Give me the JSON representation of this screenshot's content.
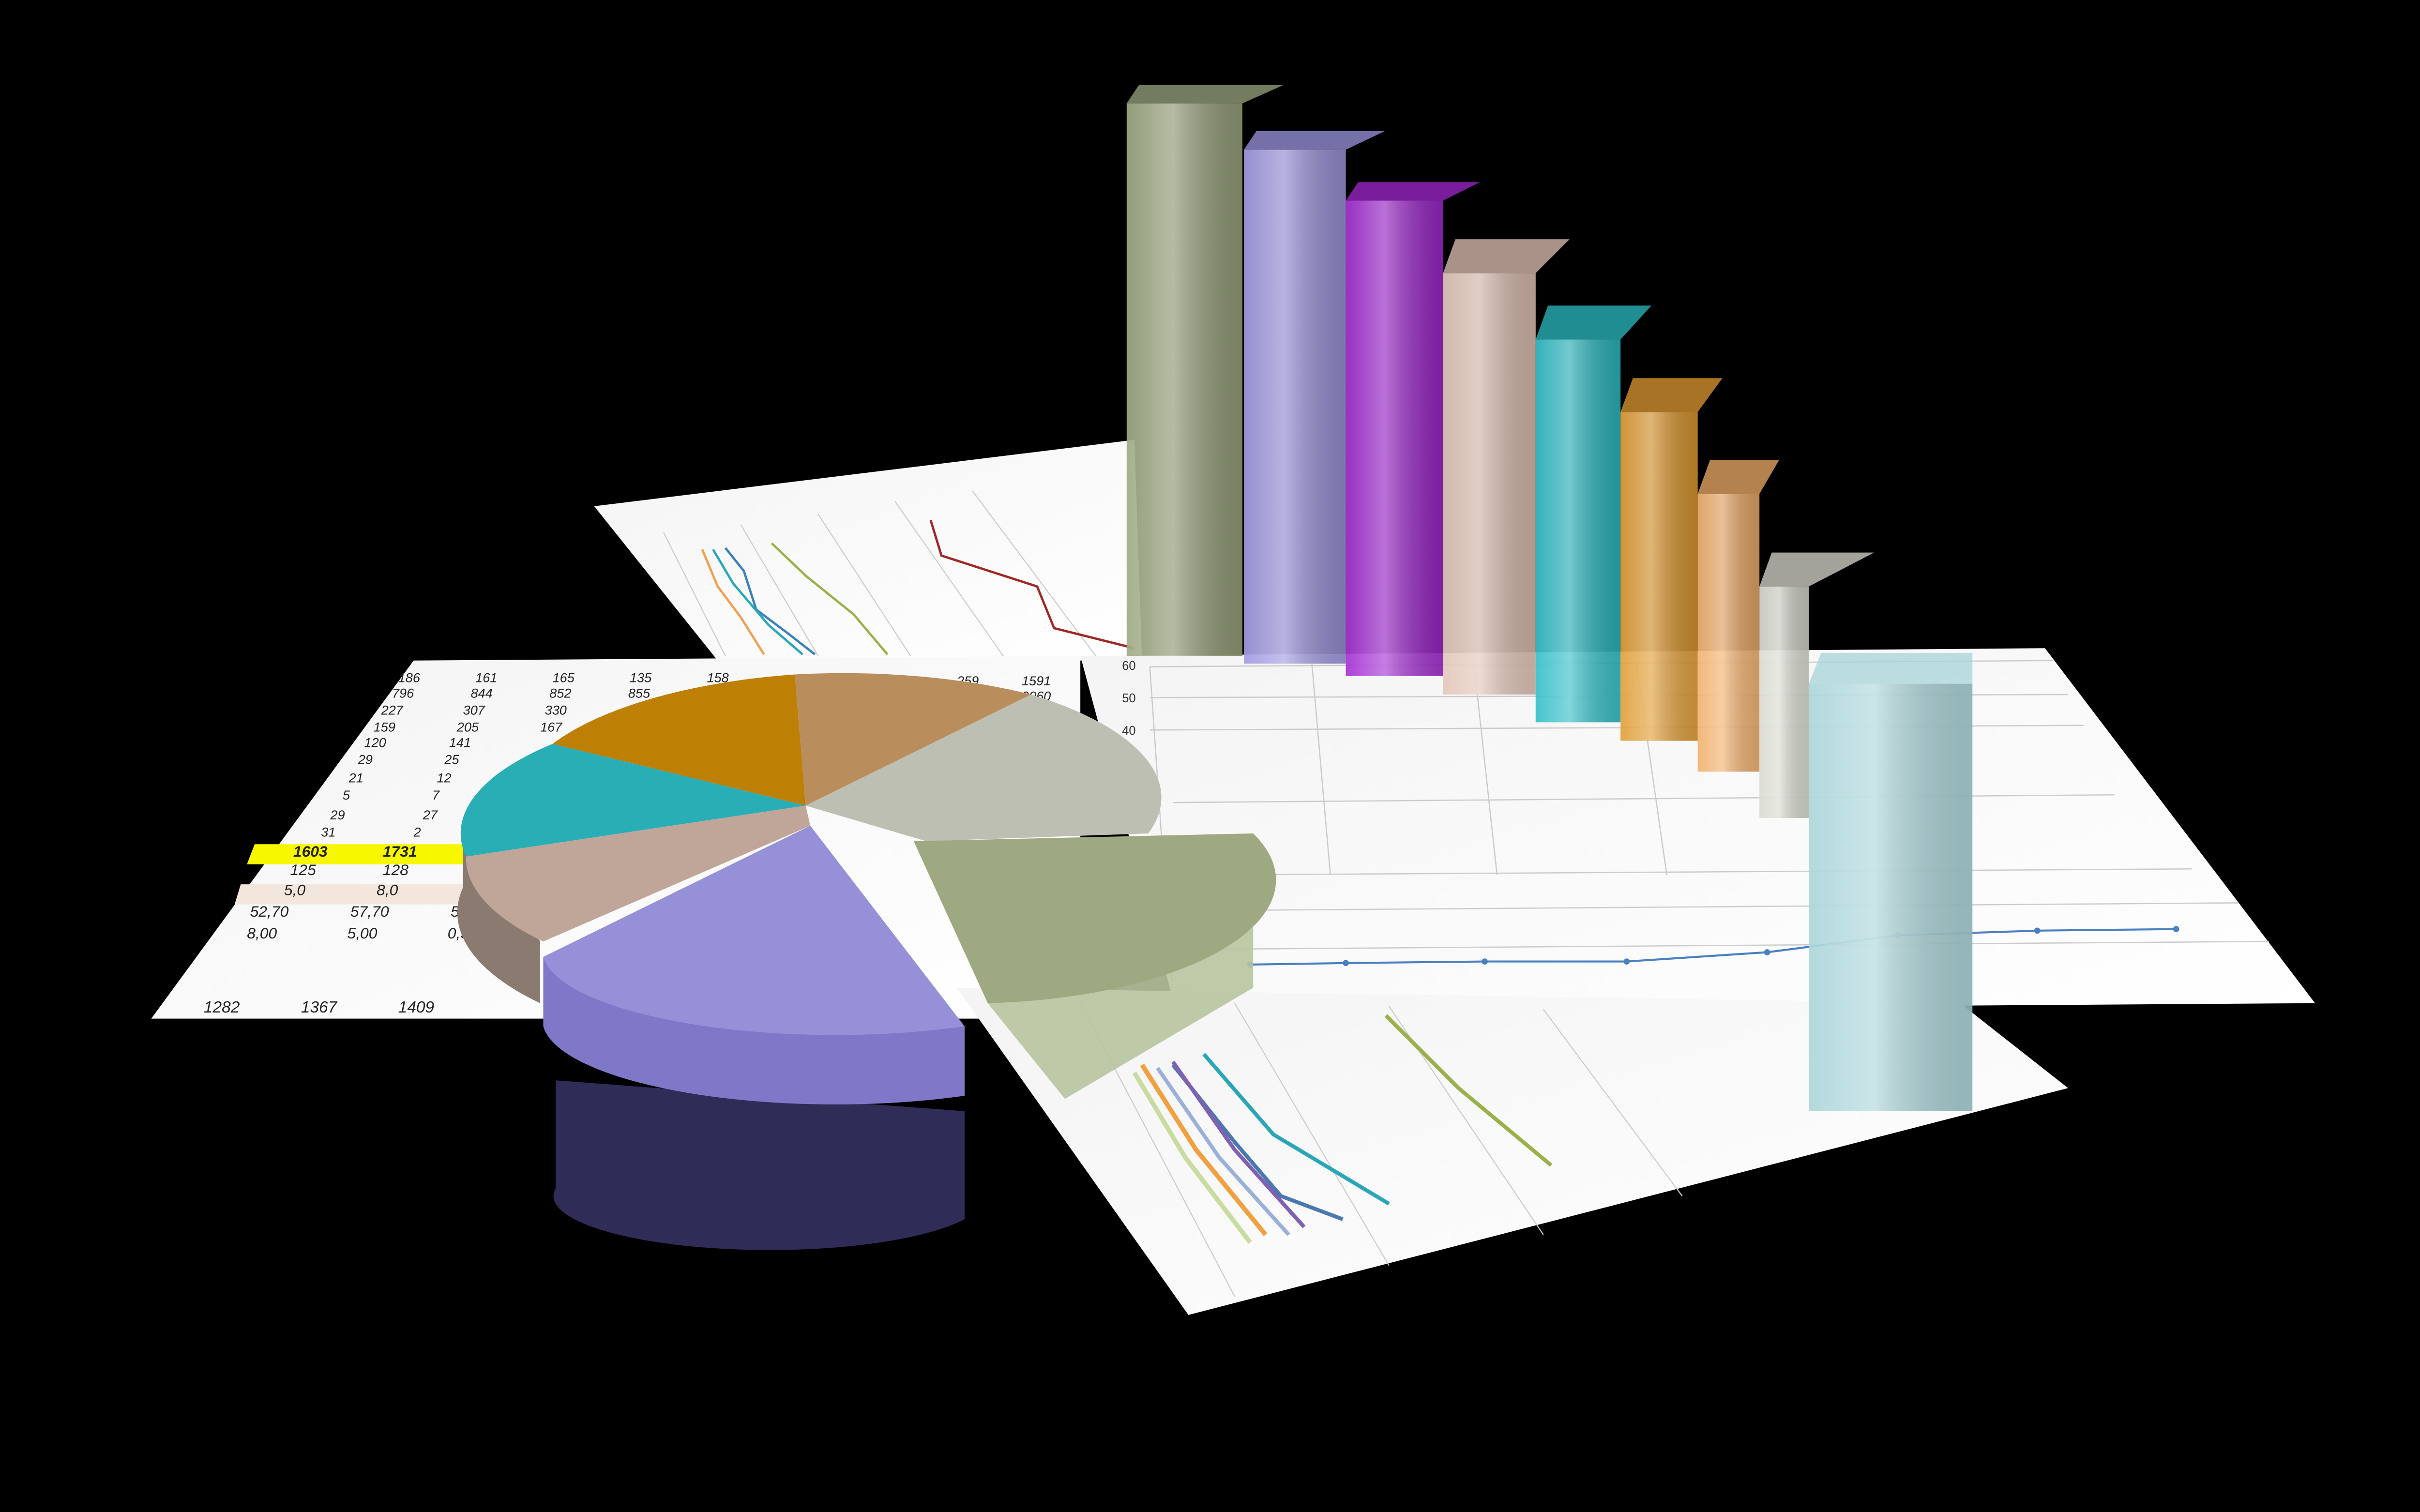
{
  "scene": {
    "background": "#000000",
    "table": {
      "rows": [
        [
          "186",
          "161",
          "165",
          "135",
          "158"
        ],
        [
          "796",
          "844",
          "852",
          "855"
        ],
        [
          "227",
          "307",
          "330"
        ],
        [
          "159",
          "205",
          "167"
        ],
        [
          "120",
          "141"
        ],
        [
          "29",
          "25"
        ],
        [
          "21",
          "12"
        ],
        [
          "5",
          "7"
        ],
        [
          "29",
          "27"
        ],
        [
          "31",
          "2"
        ],
        [
          "1603",
          "1731"
        ],
        [
          "125",
          "128"
        ],
        [
          "5,0",
          "8,0"
        ],
        [
          "52,70",
          "57,70",
          "58,0"
        ],
        [
          "8,00",
          "5,00",
          "0,30"
        ]
      ],
      "totals": [
        "1282",
        "1367",
        "1409"
      ],
      "right_values": [
        "259",
        "1591",
        "9060"
      ],
      "highlight_color": "#f7f700",
      "band_color": "#f3e6dc"
    },
    "line_chart": {
      "y_ticks": [
        "60",
        "50",
        "40"
      ],
      "line_color": "#4a7fc0"
    },
    "pie_colors": [
      "#bd7f04",
      "#b98e5c",
      "#bcbfb2",
      "#2aaeb6",
      "#c0a698",
      "#9590d8",
      "#9fa981"
    ],
    "bar_colors": [
      "#9aa57e",
      "#9d96e0",
      "#a127d0",
      "#e2c3b6",
      "#2bbcc4",
      "#e09a30",
      "#f0ae68",
      "#d9d9d0",
      "#a8d4d8"
    ]
  }
}
